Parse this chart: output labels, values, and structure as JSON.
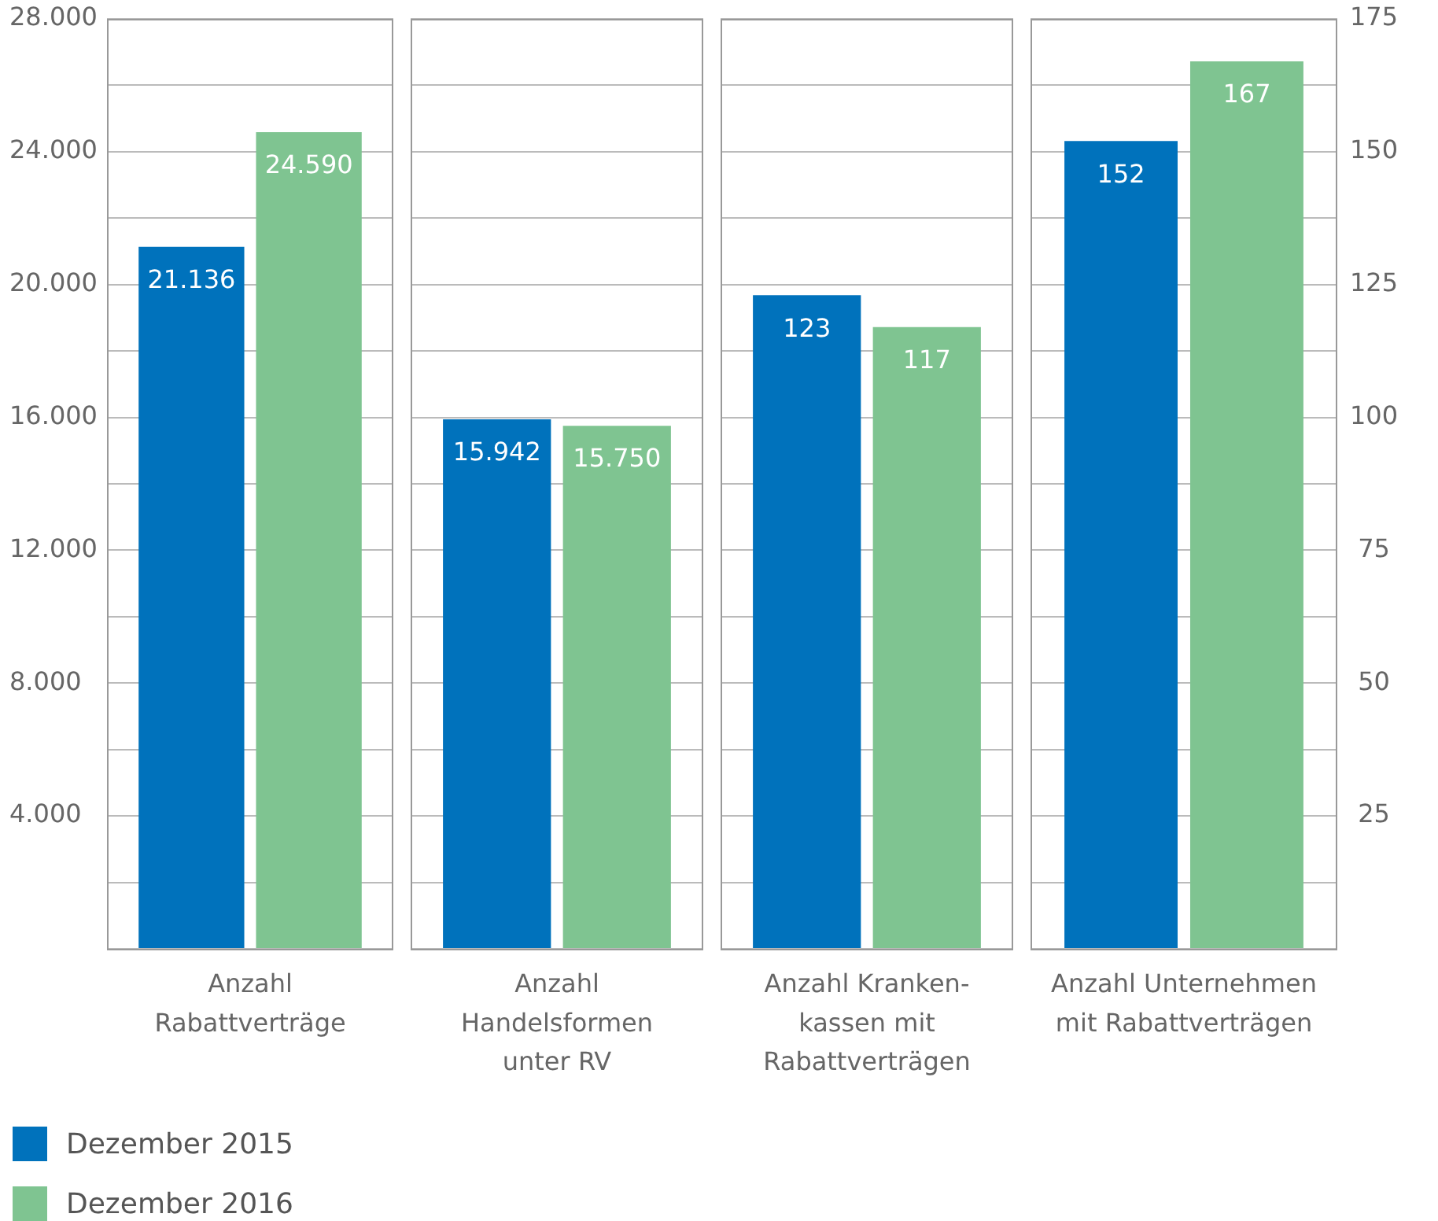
{
  "chart_data": [
    {
      "type": "bar",
      "categories": [
        "Anzahl\nRabattverträge"
      ],
      "series": [
        {
          "name": "Dezember 2015",
          "color": "#0072bc",
          "values": [
            21136
          ],
          "value_labels": [
            "21.136"
          ]
        },
        {
          "name": "Dezember 2016",
          "color": "#7fc491",
          "values": [
            24590
          ],
          "value_labels": [
            "24.590"
          ]
        }
      ],
      "ylim": [
        0,
        28000
      ],
      "yticks": [
        {
          "value": 0,
          "label": null
        },
        {
          "value": 2000,
          "label": null
        },
        {
          "value": 4000,
          "label": "4.000"
        },
        {
          "value": 6000,
          "label": null
        },
        {
          "value": 8000,
          "label": "8.000"
        },
        {
          "value": 10000,
          "label": null
        },
        {
          "value": 12000,
          "label": "12.000"
        },
        {
          "value": 14000,
          "label": null
        },
        {
          "value": 16000,
          "label": "16.000"
        },
        {
          "value": 18000,
          "label": null
        },
        {
          "value": 20000,
          "label": "20.000"
        },
        {
          "value": 22000,
          "label": null
        },
        {
          "value": 24000,
          "label": "24.000"
        },
        {
          "value": 26000,
          "label": null
        },
        {
          "value": 28000,
          "label": "28.000"
        }
      ],
      "grid": "y",
      "legend": "bottom"
    },
    {
      "type": "bar",
      "categories": [
        "Anzahl\nHandelsformen\nunter RV"
      ],
      "series": [
        {
          "color": "#0072bc",
          "values": [
            15942
          ],
          "value_labels": [
            "15.942"
          ]
        },
        {
          "color": "#7fc491",
          "values": [
            15750
          ],
          "value_labels": [
            "15.750"
          ]
        }
      ],
      "ylim": [
        0,
        28000
      ],
      "yticks": [
        0,
        2000,
        4000,
        6000,
        8000,
        10000,
        12000,
        14000,
        16000,
        18000,
        20000,
        22000,
        24000,
        26000,
        28000
      ],
      "grid": "y",
      "tick_labels": "x"
    },
    {
      "type": "bar",
      "categories": [
        "Anzahl Kranken-\nkassen mit\nRabattverträgen"
      ],
      "series": [
        {
          "color": "#0072bc",
          "values": [
            123
          ]
        },
        {
          "color": "#7fc491",
          "values": [
            117
          ]
        }
      ],
      "ylim": [
        0,
        175
      ],
      "yticks": [
        0,
        12.5,
        25,
        37.5,
        50,
        62.5,
        75,
        87.5,
        100,
        112.5,
        125,
        137.5,
        150,
        162.5,
        175
      ],
      "grid": "y",
      "data_labels": true,
      "tick_labels": "x"
    },
    {
      "type": "bar",
      "categories": [
        "Anzahl Unternehmen\nmit Rabattverträgen"
      ],
      "series": [
        {
          "color": "#0072bc",
          "values": [
            152
          ],
          "axis": "y2"
        },
        {
          "color": "#7fc491",
          "values": [
            167
          ],
          "axis": "y2"
        }
      ],
      "y2lim": [
        0,
        175
      ],
      "y2ticks": [
        {
          "value": 0,
          "label": null
        },
        {
          "value": 12.5,
          "label": null
        },
        25,
        {
          "value": 37.5,
          "label": null
        },
        50,
        {
          "value": 62.5,
          "label": null
        },
        75,
        {
          "value": 87.5,
          "label": null
        },
        100,
        {
          "value": 112.5,
          "label": null
        },
        125,
        {
          "value": 137.5,
          "label": null
        },
        150,
        {
          "value": 162.5,
          "label": null
        },
        175
      ],
      "grid": "y",
      "data_labels": true
    }
  ]
}
